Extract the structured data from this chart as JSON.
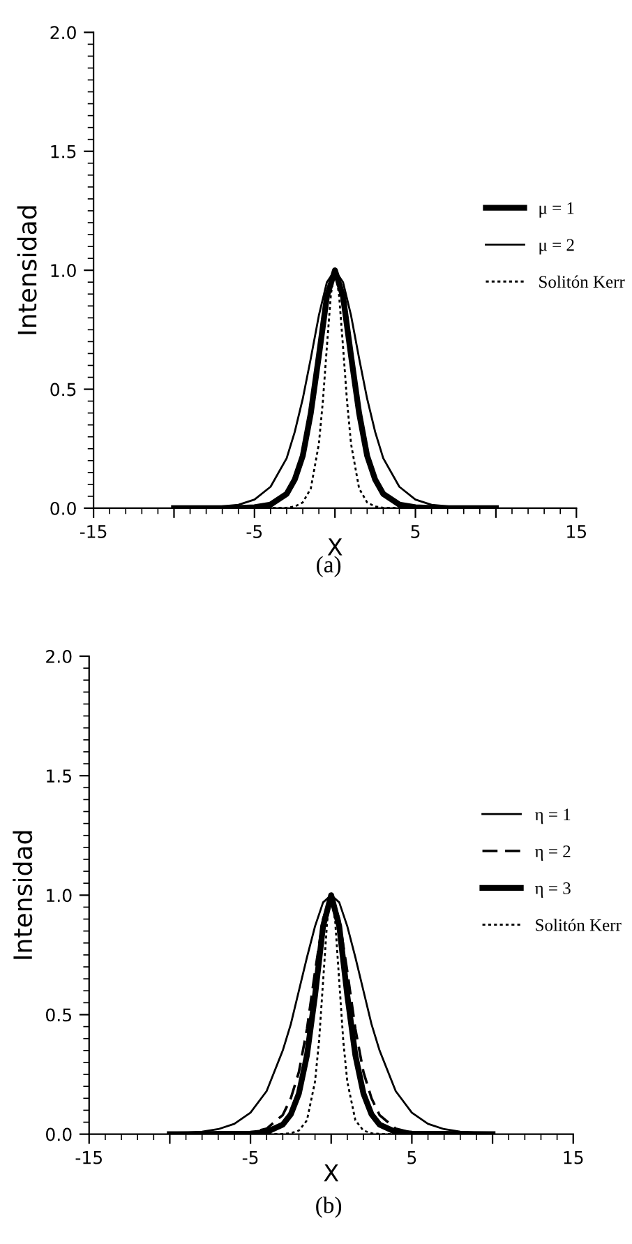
{
  "chart_data": [
    {
      "type": "line",
      "xlabel": "X",
      "ylabel": "Intensidad",
      "annotations": [
        "(a)"
      ],
      "legend": "right",
      "grid": false,
      "xlim": [
        -15,
        15
      ],
      "xticks": [
        -15,
        {
          "value": -10,
          "label": null
        },
        -5,
        {
          "value": 0,
          "label": null
        },
        5,
        {
          "value": 10,
          "label": null
        },
        15
      ],
      "ylim": [
        0,
        2
      ],
      "yticks": [
        {
          "value": 0,
          "label": "0.0"
        },
        {
          "value": 0.5,
          "label": "0.5"
        },
        {
          "value": 1,
          "label": "1.0"
        },
        {
          "value": 1.5,
          "label": "1.5"
        },
        {
          "value": 2,
          "label": "2.0"
        }
      ],
      "series": [
        {
          "name": "μ = 1",
          "color": "#000000",
          "line_style": "solid",
          "x": [
            -10,
            -6,
            -5,
            -4,
            -3,
            -2.5,
            -2,
            -1.5,
            -1,
            -0.5,
            0,
            0.5,
            1,
            1.5,
            2,
            2.5,
            3,
            4,
            5,
            6,
            10
          ],
          "values": [
            0,
            0.001,
            0.004,
            0.015,
            0.06,
            0.12,
            0.22,
            0.4,
            0.64,
            0.89,
            1.0,
            0.89,
            0.64,
            0.4,
            0.22,
            0.12,
            0.06,
            0.015,
            0.004,
            0.001,
            0
          ]
        },
        {
          "name": "μ = 2",
          "color": "#000000",
          "line_style": "solid",
          "x": [
            -10,
            -8,
            -6,
            -5,
            -4,
            -3,
            -2.5,
            -2,
            -1.5,
            -1,
            -0.5,
            0,
            0.5,
            1,
            1.5,
            2,
            2.5,
            3,
            4,
            5,
            6,
            8,
            10
          ],
          "values": [
            0,
            0.002,
            0.014,
            0.036,
            0.09,
            0.21,
            0.32,
            0.46,
            0.63,
            0.81,
            0.95,
            1.0,
            0.95,
            0.81,
            0.63,
            0.46,
            0.32,
            0.21,
            0.09,
            0.036,
            0.014,
            0.002,
            0
          ]
        },
        {
          "name": "Solitón Kerr",
          "color": "#000000",
          "line_style": "dotted",
          "x": [
            -10,
            -3,
            -2.5,
            -2,
            -1.5,
            -1,
            -0.75,
            -0.5,
            -0.25,
            0,
            0.25,
            0.5,
            0.75,
            1,
            1.5,
            2,
            2.5,
            3,
            10
          ],
          "values": [
            0,
            0.002,
            0.007,
            0.024,
            0.083,
            0.27,
            0.45,
            0.68,
            0.9,
            1.0,
            0.9,
            0.68,
            0.45,
            0.27,
            0.083,
            0.024,
            0.007,
            0.002,
            0
          ]
        }
      ]
    },
    {
      "type": "line",
      "xlabel": "X",
      "ylabel": "Intensidad",
      "annotations": [
        "(b)"
      ],
      "legend": "right",
      "grid": false,
      "xlim": [
        -15,
        15
      ],
      "xticks": [
        -15,
        {
          "value": -10,
          "label": null
        },
        -5,
        {
          "value": 0,
          "label": null
        },
        5,
        {
          "value": 10,
          "label": null
        },
        15
      ],
      "ylim": [
        0,
        2
      ],
      "yticks": [
        {
          "value": 0,
          "label": "0.0"
        },
        {
          "value": 0.5,
          "label": "0.5"
        },
        {
          "value": 1,
          "label": "1.0"
        },
        {
          "value": 1.5,
          "label": "1.5"
        },
        {
          "value": 2,
          "label": "2.0"
        }
      ],
      "series": [
        {
          "name": "η = 1",
          "color": "#000000",
          "line_style": "solid",
          "x": [
            -10,
            -8,
            -7,
            -6,
            -5,
            -4,
            -3,
            -2.5,
            -2,
            -1.5,
            -1,
            -0.5,
            0,
            0.5,
            1,
            1.5,
            2,
            2.5,
            3,
            4,
            5,
            6,
            7,
            8,
            10
          ],
          "values": [
            0.002,
            0.01,
            0.021,
            0.043,
            0.09,
            0.18,
            0.35,
            0.46,
            0.6,
            0.74,
            0.87,
            0.97,
            1.0,
            0.97,
            0.87,
            0.74,
            0.6,
            0.46,
            0.35,
            0.18,
            0.09,
            0.043,
            0.021,
            0.01,
            0.002
          ]
        },
        {
          "name": "η = 2",
          "color": "#000000",
          "line_style": "dashed",
          "x": [
            -10,
            -6,
            -5,
            -4,
            -3,
            -2.5,
            -2,
            -1.5,
            -1,
            -0.5,
            0,
            0.5,
            1,
            1.5,
            2,
            2.5,
            3,
            4,
            5,
            6,
            10
          ],
          "values": [
            0,
            0.002,
            0.006,
            0.023,
            0.08,
            0.15,
            0.26,
            0.44,
            0.68,
            0.9,
            1.0,
            0.9,
            0.68,
            0.44,
            0.26,
            0.15,
            0.08,
            0.023,
            0.006,
            0.002,
            0
          ]
        },
        {
          "name": "η = 3",
          "color": "#000000",
          "line_style": "solid",
          "x": [
            -10,
            -5,
            -4,
            -3,
            -2.5,
            -2,
            -1.5,
            -1,
            -0.5,
            0,
            0.5,
            1,
            1.5,
            2,
            2.5,
            3,
            4,
            5,
            10
          ],
          "values": [
            0,
            0.002,
            0.009,
            0.04,
            0.083,
            0.17,
            0.33,
            0.58,
            0.87,
            1.0,
            0.87,
            0.58,
            0.33,
            0.17,
            0.083,
            0.04,
            0.009,
            0.002,
            0
          ]
        },
        {
          "name": "Solitón Kerr",
          "color": "#000000",
          "line_style": "dotted",
          "x": [
            -10,
            -3,
            -2.5,
            -2,
            -1.5,
            -1,
            -0.75,
            -0.5,
            -0.25,
            0,
            0.25,
            0.5,
            0.75,
            1,
            1.5,
            2,
            2.5,
            3,
            10
          ],
          "values": [
            0,
            0.001,
            0.004,
            0.015,
            0.058,
            0.22,
            0.39,
            0.64,
            0.89,
            1.0,
            0.89,
            0.64,
            0.39,
            0.22,
            0.058,
            0.015,
            0.004,
            0.001,
            0
          ]
        }
      ]
    }
  ]
}
